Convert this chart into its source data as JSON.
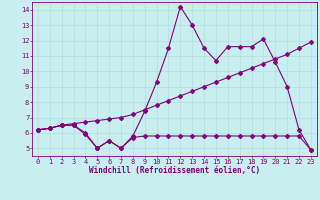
{
  "xlabel": "Windchill (Refroidissement éolien,°C)",
  "background_color": "#c8eef0",
  "line_color": "#800080",
  "grid_color": "#b0d8dc",
  "x_ticks": [
    0,
    1,
    2,
    3,
    4,
    5,
    6,
    7,
    8,
    9,
    10,
    11,
    12,
    13,
    14,
    15,
    16,
    17,
    18,
    19,
    20,
    21,
    22,
    23
  ],
  "y_ticks": [
    5,
    6,
    7,
    8,
    9,
    10,
    11,
    12,
    13,
    14
  ],
  "ylim": [
    4.5,
    14.5
  ],
  "xlim": [
    -0.5,
    23.5
  ],
  "line1_x": [
    0,
    1,
    2,
    3,
    4,
    5,
    6,
    7,
    8,
    9,
    10,
    11,
    12,
    13,
    14,
    15,
    16,
    17,
    18,
    19,
    20,
    21,
    22,
    23
  ],
  "line1_y": [
    6.2,
    6.3,
    6.5,
    6.5,
    6.0,
    5.0,
    5.5,
    5.0,
    5.8,
    7.4,
    9.3,
    11.5,
    14.2,
    13.0,
    11.5,
    10.7,
    11.6,
    11.6,
    11.6,
    12.1,
    10.6,
    9.0,
    6.2,
    4.9
  ],
  "line2_x": [
    0,
    1,
    2,
    3,
    4,
    5,
    6,
    7,
    8,
    9,
    10,
    11,
    12,
    13,
    14,
    15,
    16,
    17,
    18,
    19,
    20,
    21,
    22,
    23
  ],
  "line2_y": [
    6.2,
    6.3,
    6.5,
    6.6,
    6.7,
    6.8,
    6.9,
    7.0,
    7.2,
    7.5,
    7.8,
    8.1,
    8.4,
    8.7,
    9.0,
    9.3,
    9.6,
    9.9,
    10.2,
    10.5,
    10.8,
    11.1,
    11.5,
    11.9
  ],
  "line3_x": [
    0,
    1,
    2,
    3,
    4,
    5,
    6,
    7,
    8,
    9,
    10,
    11,
    12,
    13,
    14,
    15,
    16,
    17,
    18,
    19,
    20,
    21,
    22,
    23
  ],
  "line3_y": [
    6.2,
    6.3,
    6.5,
    6.5,
    5.9,
    5.0,
    5.5,
    5.0,
    5.7,
    5.8,
    5.8,
    5.8,
    5.8,
    5.8,
    5.8,
    5.8,
    5.8,
    5.8,
    5.8,
    5.8,
    5.8,
    5.8,
    5.8,
    4.9
  ],
  "tick_fontsize": 5.0,
  "xlabel_fontsize": 5.5,
  "marker_size": 2.0,
  "linewidth": 0.8
}
